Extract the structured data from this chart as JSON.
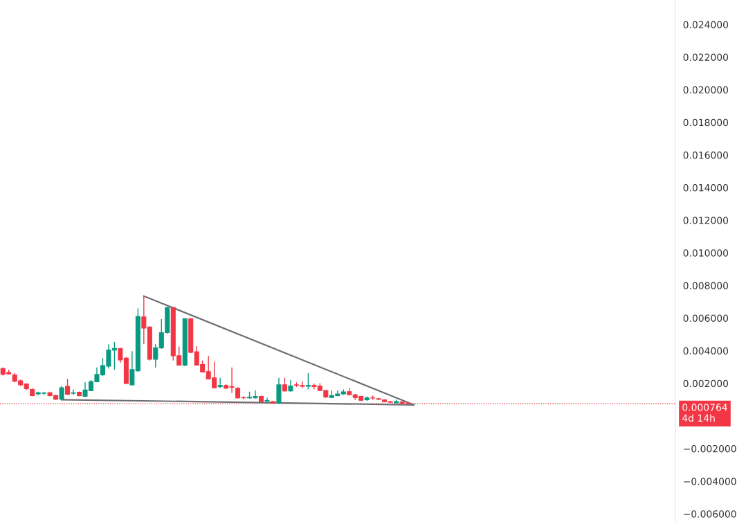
{
  "chart_data": {
    "type": "candlestick",
    "categories": [
      null,
      null,
      null,
      null,
      null,
      null,
      null,
      null,
      null,
      null,
      null,
      null,
      null,
      null,
      null,
      null,
      null,
      null,
      null,
      null,
      null,
      null,
      null,
      null,
      null,
      null,
      null,
      null,
      null,
      null,
      null,
      null,
      null,
      null,
      null,
      null,
      null,
      null,
      null,
      null,
      null,
      null,
      null,
      null,
      null,
      null,
      null,
      null,
      null,
      null,
      null,
      null,
      null,
      null,
      null,
      null,
      null,
      null,
      null,
      null,
      null,
      null,
      null,
      null,
      null,
      null,
      null,
      null,
      null,
      null,
      null,
      null,
      null,
      null,
      null,
      null,
      null,
      null,
      null,
      null,
      null,
      null,
      null,
      null,
      null,
      null,
      null,
      null,
      null,
      null,
      null,
      null,
      null,
      null,
      null,
      null,
      null,
      null,
      null,
      null,
      null,
      null,
      null,
      null,
      null,
      null,
      null,
      null,
      null,
      null,
      null,
      null,
      null,
      null,
      null
    ],
    "ohlc": [
      [
        0.00291,
        0.00298,
        0.00248,
        0.00255
      ],
      [
        0.00267,
        0.00284,
        0.00253,
        0.00258
      ],
      [
        0.00252,
        0.00262,
        0.00206,
        0.00213
      ],
      [
        0.00216,
        0.00223,
        0.00184,
        0.00191
      ],
      [
        0.00196,
        0.002,
        0.0016,
        0.00167
      ],
      [
        0.00163,
        0.0017,
        0.0012,
        0.00125
      ],
      [
        0.00135,
        0.00149,
        0.00128,
        0.00142
      ],
      [
        0.00139,
        0.00148,
        0.00128,
        0.00141
      ],
      [
        0.00142,
        0.00149,
        0.0012,
        0.00125
      ],
      [
        0.00125,
        0.0013,
        0.00098,
        0.00102
      ],
      [
        0.00102,
        0.00184,
        0.00096,
        0.00173
      ],
      [
        0.00182,
        0.00227,
        0.00128,
        0.00133
      ],
      [
        0.00139,
        0.00163,
        0.0013,
        0.00142
      ],
      [
        0.00145,
        0.0015,
        0.0012,
        0.00125
      ],
      [
        0.0012,
        0.00206,
        0.00116,
        0.00159
      ],
      [
        0.00155,
        0.0022,
        0.00153,
        0.0021
      ],
      [
        0.0021,
        0.00298,
        0.00206,
        0.00255
      ],
      [
        0.00252,
        0.00355,
        0.00244,
        0.00309
      ],
      [
        0.00305,
        0.0044,
        0.00291,
        0.00404
      ],
      [
        0.00404,
        0.00454,
        0.00284,
        0.00414
      ],
      [
        0.00414,
        0.00418,
        0.00326,
        0.00343
      ],
      [
        0.00355,
        0.00362,
        0.00196,
        0.00199
      ],
      [
        0.00191,
        0.00397,
        0.00187,
        0.00284
      ],
      [
        0.00277,
        0.0066,
        0.00272,
        0.0061
      ],
      [
        0.00607,
        0.00735,
        0.0044,
        0.00539
      ],
      [
        0.00546,
        0.0055,
        0.0034,
        0.00348
      ],
      [
        0.00348,
        0.0044,
        0.00298,
        0.00418
      ],
      [
        0.00418,
        0.00593,
        0.00411,
        0.00511
      ],
      [
        0.00511,
        0.0067,
        0.00504,
        0.00664
      ],
      [
        0.00664,
        0.0067,
        0.0034,
        0.00369
      ],
      [
        0.00369,
        0.00426,
        0.00309,
        0.00312
      ],
      [
        0.00312,
        0.00599,
        0.00305,
        0.00596
      ],
      [
        0.00596,
        0.00599,
        0.00386,
        0.0039
      ],
      [
        0.00394,
        0.00428,
        0.00309,
        0.00312
      ],
      [
        0.00315,
        0.0034,
        0.00267,
        0.0027
      ],
      [
        0.00272,
        0.00369,
        0.00224,
        0.00227
      ],
      [
        0.00234,
        0.00333,
        0.0017,
        0.00173
      ],
      [
        0.0018,
        0.00234,
        0.0017,
        0.00187
      ],
      [
        0.00187,
        0.00195,
        0.00163,
        0.0017
      ],
      [
        0.0018,
        0.00298,
        0.00142,
        0.00176
      ],
      [
        0.0017,
        0.00177,
        0.00106,
        0.00111
      ],
      [
        0.00113,
        0.0012,
        0.00102,
        0.00111
      ],
      [
        0.00111,
        0.00149,
        0.00106,
        0.00115
      ],
      [
        0.00111,
        0.00156,
        0.00106,
        0.0012
      ],
      [
        0.0012,
        0.00125,
        0.00084,
        0.00088
      ],
      [
        0.00092,
        0.00113,
        0.00078,
        0.00095
      ],
      [
        0.00088,
        0.00092,
        0.00074,
        0.00078
      ],
      [
        0.00078,
        0.00234,
        0.00074,
        0.00191
      ],
      [
        0.00191,
        0.00234,
        0.00149,
        0.00153
      ],
      [
        0.00153,
        0.0022,
        0.00149,
        0.00184
      ],
      [
        0.00191,
        0.00206,
        0.00177,
        0.00189
      ],
      [
        0.00187,
        0.00213,
        0.0017,
        0.00182
      ],
      [
        0.00182,
        0.00262,
        0.00163,
        0.00187
      ],
      [
        0.00187,
        0.00199,
        0.00163,
        0.0018
      ],
      [
        0.00184,
        0.00201,
        0.00153,
        0.00156
      ],
      [
        0.00156,
        0.0016,
        0.00111,
        0.00116
      ],
      [
        0.00113,
        0.00156,
        0.00111,
        0.00125
      ],
      [
        0.00125,
        0.00156,
        0.0012,
        0.00135
      ],
      [
        0.00135,
        0.00163,
        0.0013,
        0.00148
      ],
      [
        0.00149,
        0.0017,
        0.00128,
        0.0013
      ],
      [
        0.0013,
        0.00135,
        0.00099,
        0.00113
      ],
      [
        0.0012,
        0.00125,
        0.00092,
        0.00096
      ],
      [
        0.00099,
        0.0012,
        0.00092,
        0.00111
      ],
      [
        0.00111,
        0.00125,
        0.00099,
        0.0011
      ],
      [
        0.00106,
        0.00111,
        0.00099,
        0.00102
      ],
      [
        0.00099,
        0.00102,
        0.00084,
        0.00088
      ],
      [
        0.00088,
        0.00092,
        0.0008,
        0.00084
      ],
      [
        0.0008,
        0.00099,
        0.00078,
        0.00088
      ],
      [
        0.00086,
        0.0009,
        0.00074,
        0.00078
      ],
      [
        0.0008,
        0.00082,
        0.00072,
        0.000764
      ],
      null,
      null,
      null,
      null,
      null,
      null,
      null,
      null,
      null,
      null,
      null,
      null,
      null,
      null,
      null,
      null,
      null,
      null,
      null,
      null,
      null,
      null,
      null,
      null,
      null,
      null,
      null,
      null,
      null,
      null,
      null,
      null,
      null,
      null,
      null,
      null,
      null,
      null,
      null,
      null,
      null,
      null,
      null,
      null,
      null
    ],
    "colors": [
      "#f23645",
      "#f23645",
      "#f23645",
      "#f23645",
      "#f23645",
      "#f23645",
      "#089981",
      "#089981",
      "#f23645",
      "#f23645",
      "#089981",
      "#f23645",
      "#089981",
      "#f23645",
      "#089981",
      "#089981",
      "#089981",
      "#089981",
      "#089981",
      "#089981",
      "#f23645",
      "#f23645",
      "#089981",
      "#089981",
      "#f23645",
      "#f23645",
      "#089981",
      "#089981",
      "#089981",
      "#f23645",
      "#f23645",
      "#089981",
      "#f23645",
      "#f23645",
      "#f23645",
      "#f23645",
      "#f23645",
      "#089981",
      "#f23645",
      "#f23645",
      "#f23645",
      "#f23645",
      "#089981",
      "#089981",
      "#f23645",
      "#089981",
      "#f23645",
      "#089981",
      "#f23645",
      "#089981",
      "#f23645",
      "#f23645",
      "#089981",
      "#f23645",
      "#f23645",
      "#f23645",
      "#089981",
      "#089981",
      "#089981",
      "#f23645",
      "#f23645",
      "#f23645",
      "#089981",
      "#f23645",
      "#f23645",
      "#f23645",
      "#f23645",
      "#089981",
      "#f23645",
      "#f23645",
      null,
      null,
      null,
      null,
      null,
      null,
      null,
      null,
      null,
      null,
      null,
      null,
      null,
      null,
      null,
      null,
      null,
      null,
      null,
      null,
      null,
      null,
      null,
      null,
      null,
      null,
      null,
      null,
      null,
      null,
      null,
      null,
      null,
      null,
      null,
      null,
      null,
      null,
      null,
      null,
      null,
      null,
      null,
      null,
      null
    ],
    "series": [
      {
        "type": "line",
        "color": "#6f6f73",
        "values": [
          null,
          null,
          null,
          null,
          null,
          null,
          null,
          null,
          null,
          null,
          null,
          null,
          null,
          null,
          null,
          null,
          null,
          null,
          null,
          null,
          null,
          null,
          null,
          null,
          0.00735,
          null,
          null,
          null,
          null,
          null,
          null,
          null,
          null,
          null,
          null,
          null,
          null,
          null,
          null,
          null,
          null,
          null,
          null,
          null,
          null,
          null,
          null,
          null,
          null,
          null,
          null,
          null,
          null,
          null,
          null,
          null,
          null,
          null,
          null,
          null,
          null,
          null,
          null,
          null,
          null,
          null,
          null,
          null,
          null,
          null,
          0.00068,
          null,
          null,
          null,
          null,
          null,
          null,
          null,
          null,
          null,
          null,
          null,
          null,
          null,
          null,
          null,
          null,
          null,
          null,
          null,
          null,
          null,
          null,
          null,
          null,
          null,
          null,
          null,
          null,
          null,
          null,
          null,
          null,
          null,
          null,
          null,
          null,
          null,
          null,
          null,
          null,
          null,
          null,
          null,
          null
        ]
      },
      {
        "type": "line",
        "color": "#6f6f73",
        "values": [
          null,
          null,
          null,
          null,
          null,
          null,
          null,
          null,
          null,
          null,
          0.001,
          null,
          null,
          null,
          null,
          null,
          null,
          null,
          null,
          null,
          null,
          null,
          null,
          null,
          null,
          null,
          null,
          null,
          null,
          null,
          null,
          null,
          null,
          null,
          null,
          null,
          null,
          null,
          null,
          null,
          null,
          null,
          null,
          null,
          null,
          null,
          null,
          null,
          null,
          null,
          null,
          null,
          null,
          null,
          null,
          null,
          null,
          null,
          null,
          null,
          null,
          null,
          null,
          null,
          null,
          null,
          null,
          null,
          null,
          null,
          0.00068,
          null,
          null,
          null,
          null,
          null,
          null,
          null,
          null,
          null,
          null,
          null,
          null,
          null,
          null,
          null,
          null,
          null,
          null,
          null,
          null,
          null,
          null,
          null,
          null,
          null,
          null,
          null,
          null,
          null,
          null,
          null,
          null,
          null,
          null,
          null,
          null,
          null,
          null,
          null,
          null,
          null,
          null,
          null,
          null
        ]
      }
    ],
    "ref_lines": [
      {
        "axis": "y",
        "value": 0.000764,
        "label": "0.000764\n4d 14h",
        "color": "#f23645",
        "line_style": "dotted"
      }
    ],
    "ylim": [
      -0.0065,
      0.0255
    ],
    "yticks": [
      {
        "value": 0.024,
        "label": "0.024000"
      },
      {
        "value": 0.022,
        "label": "0.022000"
      },
      {
        "value": 0.02,
        "label": "0.020000"
      },
      {
        "value": 0.018,
        "label": "0.018000"
      },
      {
        "value": 0.016,
        "label": "0.016000"
      },
      {
        "value": 0.014,
        "label": "0.014000"
      },
      {
        "value": 0.012,
        "label": "0.012000"
      },
      {
        "value": 0.01,
        "label": "0.010000"
      },
      {
        "value": 0.008,
        "label": "0.008000"
      },
      {
        "value": 0.006,
        "label": "0.006000"
      },
      {
        "value": 0.004,
        "label": "0.004000"
      },
      {
        "value": 0.002,
        "label": "0.002000"
      },
      {
        "value": -0.002,
        "label": "−0.002000"
      },
      {
        "value": -0.004,
        "label": "−0.004000"
      },
      {
        "value": -0.006,
        "label": "−0.006000"
      }
    ],
    "tick_labels": "y",
    "grid": false,
    "legend": false
  }
}
